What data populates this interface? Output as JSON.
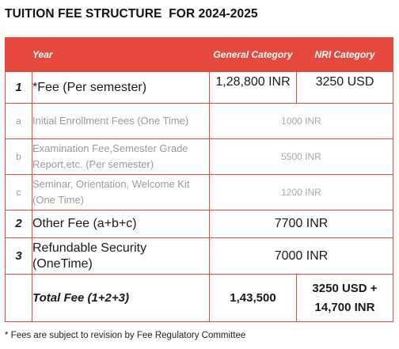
{
  "title": "TUITION FEE STRUCTURE  FOR 2024-2025",
  "header": {
    "year": "Year",
    "general": "General Category",
    "nri": "NRI Category"
  },
  "rows": [
    {
      "num": "1",
      "desc": "*Fee (Per semester)",
      "general": "1,28,800 INR",
      "nri": "3250 USD"
    },
    {
      "num": "a",
      "desc": "Initial Enrollment Fees (One Time)",
      "value": "1000 INR"
    },
    {
      "num": "b",
      "desc": "Examination Fee,Semester Grade Report,etc. (Per semester)",
      "value": "5500 INR"
    },
    {
      "num": "c",
      "desc": "Seminar, Orientation, Welcome Kit (One Time)",
      "value": "1200 INR"
    },
    {
      "num": "2",
      "desc": "Other Fee (a+b+c)",
      "value": "7700 INR"
    },
    {
      "num": "3",
      "desc": "Refundable Security (OneTime)",
      "value": "7000 INR"
    }
  ],
  "total": {
    "label": "Total Fee (1+2+3)",
    "general": "1,43,500",
    "nri": "3250 USD + 14,700 INR"
  },
  "footnote": "* Fees are subject to revision by Fee Regulatory Committee",
  "colors": {
    "border": "#e9473d",
    "header_bg": "#e64a3f",
    "muted_text": "#9a9a9a"
  }
}
